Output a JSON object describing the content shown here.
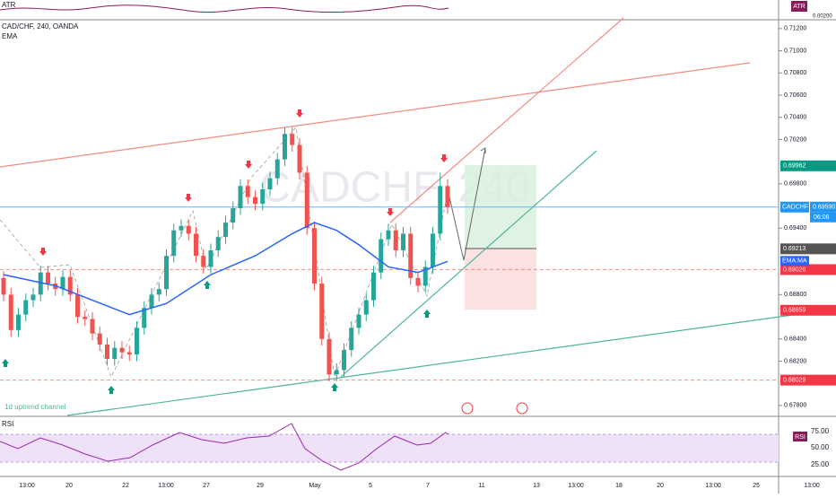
{
  "chart_data": {
    "type": "candlestick",
    "title": "CAD/CHF, 240, OANDA",
    "indicator": "EMA",
    "watermark": "CADCHF, 240",
    "annotation": "1d uptrend channel",
    "up_color": "#26a69a",
    "down_color": "#ef5350",
    "ylim": [
      0.6771,
      0.7128
    ],
    "yticks": [
      {
        "value": 0.712,
        "label": "0.71200"
      },
      {
        "value": 0.71,
        "label": "0.71000"
      },
      {
        "value": 0.708,
        "label": "0.70800"
      },
      {
        "value": 0.706,
        "label": "0.70600"
      },
      {
        "value": 0.704,
        "label": "0.70400"
      },
      {
        "value": 0.702,
        "label": "0.70200"
      },
      {
        "value": 0.698,
        "label": "0.69800"
      },
      {
        "value": 0.694,
        "label": "0.69400"
      },
      {
        "value": 0.688,
        "label": "0.68800"
      },
      {
        "value": 0.684,
        "label": "0.68400"
      },
      {
        "value": 0.682,
        "label": "0.68200"
      },
      {
        "value": 0.678,
        "label": "0.67800"
      }
    ],
    "xtick_labels": [
      "13:00",
      "20",
      "22",
      "13:00",
      "27",
      "29",
      "May",
      "5",
      "7",
      "11",
      "13",
      "13:00",
      "18",
      "20",
      "13:00",
      "25",
      "13:00"
    ],
    "ohlc": [
      [
        0.6895,
        0.6901,
        0.6874,
        0.688
      ],
      [
        0.688,
        0.6886,
        0.6842,
        0.6848
      ],
      [
        0.6848,
        0.6868,
        0.6842,
        0.6862
      ],
      [
        0.6862,
        0.6881,
        0.6856,
        0.6875
      ],
      [
        0.6875,
        0.6886,
        0.6869,
        0.688
      ],
      [
        0.688,
        0.6906,
        0.6874,
        0.69
      ],
      [
        0.69,
        0.6906,
        0.6884,
        0.689
      ],
      [
        0.689,
        0.6896,
        0.6879,
        0.6885
      ],
      [
        0.6885,
        0.6902,
        0.6879,
        0.6896
      ],
      [
        0.6896,
        0.6902,
        0.6874,
        0.688
      ],
      [
        0.688,
        0.6886,
        0.6854,
        0.686
      ],
      [
        0.686,
        0.6866,
        0.6852,
        0.6858
      ],
      [
        0.6858,
        0.6864,
        0.6839,
        0.6845
      ],
      [
        0.6845,
        0.6851,
        0.6829,
        0.6835
      ],
      [
        0.6835,
        0.6841,
        0.6816,
        0.6822
      ],
      [
        0.6822,
        0.6838,
        0.6816,
        0.6832
      ],
      [
        0.6832,
        0.6838,
        0.6822,
        0.6828
      ],
      [
        0.6828,
        0.6834,
        0.682,
        0.6826
      ],
      [
        0.6826,
        0.6856,
        0.682,
        0.685
      ],
      [
        0.685,
        0.6874,
        0.6844,
        0.6868
      ],
      [
        0.6868,
        0.6886,
        0.6862,
        0.688
      ],
      [
        0.688,
        0.6891,
        0.6874,
        0.6885
      ],
      [
        0.6885,
        0.6921,
        0.6879,
        0.6915
      ],
      [
        0.6915,
        0.6944,
        0.6909,
        0.6938
      ],
      [
        0.6938,
        0.6948,
        0.6932,
        0.6942
      ],
      [
        0.6942,
        0.6948,
        0.6929,
        0.6935
      ],
      [
        0.6935,
        0.6941,
        0.6909,
        0.6915
      ],
      [
        0.6915,
        0.6921,
        0.6899,
        0.6905
      ],
      [
        0.6905,
        0.6926,
        0.6899,
        0.692
      ],
      [
        0.692,
        0.6938,
        0.6914,
        0.6932
      ],
      [
        0.6932,
        0.6951,
        0.6926,
        0.6945
      ],
      [
        0.6945,
        0.6964,
        0.6939,
        0.6958
      ],
      [
        0.6958,
        0.6984,
        0.6952,
        0.6978
      ],
      [
        0.6978,
        0.6984,
        0.6962,
        0.6968
      ],
      [
        0.6968,
        0.6974,
        0.6956,
        0.6962
      ],
      [
        0.6962,
        0.6981,
        0.6956,
        0.6975
      ],
      [
        0.6975,
        0.6991,
        0.6969,
        0.6985
      ],
      [
        0.6985,
        0.7008,
        0.6979,
        0.7002
      ],
      [
        0.7002,
        0.7031,
        0.6996,
        0.7025
      ],
      [
        0.7025,
        0.7031,
        0.7009,
        0.7015
      ],
      [
        0.7015,
        0.7021,
        0.6984,
        0.699
      ],
      [
        0.699,
        0.6996,
        0.6934,
        0.694
      ],
      [
        0.694,
        0.6946,
        0.6884,
        0.689
      ],
      [
        0.689,
        0.6896,
        0.6834,
        0.684
      ],
      [
        0.684,
        0.6846,
        0.6802,
        0.6808
      ],
      [
        0.6808,
        0.6818,
        0.6802,
        0.6812
      ],
      [
        0.6812,
        0.6836,
        0.6806,
        0.683
      ],
      [
        0.683,
        0.6856,
        0.6824,
        0.685
      ],
      [
        0.685,
        0.6868,
        0.6844,
        0.6862
      ],
      [
        0.6862,
        0.6881,
        0.6856,
        0.6875
      ],
      [
        0.6875,
        0.6906,
        0.6869,
        0.69
      ],
      [
        0.69,
        0.6936,
        0.6894,
        0.693
      ],
      [
        0.693,
        0.6944,
        0.6924,
        0.6938
      ],
      [
        0.6938,
        0.6944,
        0.6914,
        0.692
      ],
      [
        0.692,
        0.6941,
        0.6914,
        0.6935
      ],
      [
        0.6935,
        0.6941,
        0.6889,
        0.6895
      ],
      [
        0.6895,
        0.6901,
        0.6882,
        0.6888
      ],
      [
        0.6888,
        0.6911,
        0.6882,
        0.6905
      ],
      [
        0.6905,
        0.6941,
        0.6899,
        0.6935
      ],
      [
        0.6935,
        0.699,
        0.6929,
        0.6978
      ],
      [
        0.6978,
        0.6984,
        0.6953,
        0.6959
      ]
    ],
    "ema": {
      "name": "EMA:MA",
      "color": "#2962ff",
      "x": [
        0,
        7,
        12,
        17,
        22,
        28,
        34,
        39,
        42,
        45,
        48,
        52,
        56,
        60
      ],
      "values": [
        0.6898,
        0.6888,
        0.6875,
        0.6862,
        0.6872,
        0.6898,
        0.6915,
        0.6935,
        0.6945,
        0.6938,
        0.6925,
        0.6905,
        0.69,
        0.691
      ]
    },
    "badges": [
      {
        "value": 0.69962,
        "label": "0.69962",
        "color": "#089981"
      },
      {
        "value": 0.6959,
        "label": "0.69590",
        "color": "#2196f3"
      },
      {
        "value": 0.69213,
        "label": "0.69213",
        "color": "#555555"
      },
      {
        "value": 0.69026,
        "label": "0.69026",
        "color": "#f23645"
      },
      {
        "value": 0.68659,
        "label": "0.68659",
        "color": "#f23645"
      },
      {
        "value": 0.68029,
        "label": "0.68029",
        "color": "#f23645"
      }
    ],
    "symbol_badge": "CADCHF",
    "countdown": "06:06",
    "atr": {
      "title": "ATR",
      "tick": "0.00200"
    },
    "rsi": {
      "title": "RSI",
      "ticks": [
        "75.00",
        "50.00",
        "25.00"
      ]
    }
  }
}
